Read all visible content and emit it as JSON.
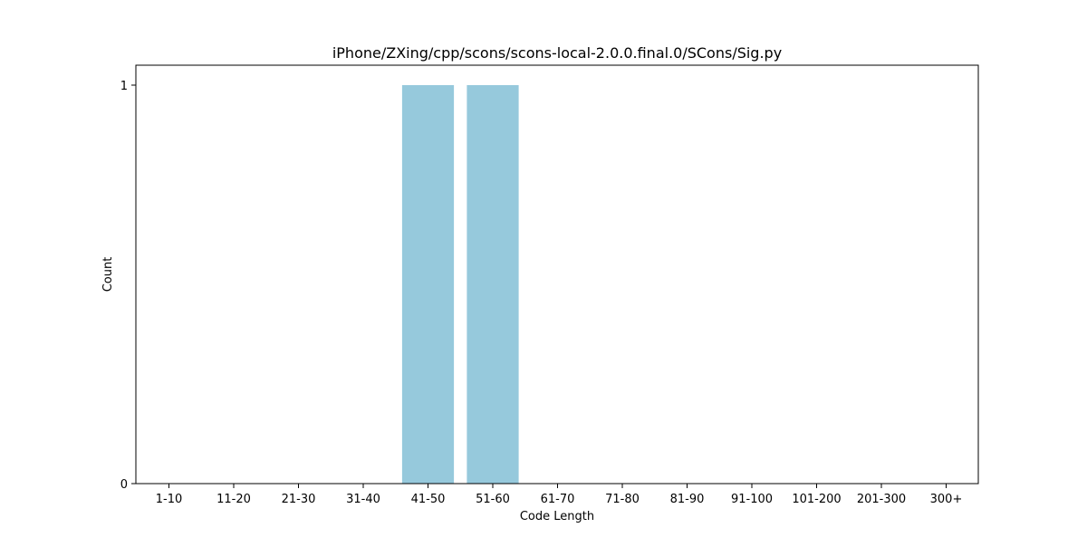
{
  "chart_data": {
    "type": "bar",
    "title": "iPhone/ZXing/cpp/scons/scons-local-2.0.0.final.0/SCons/Sig.py",
    "xlabel": "Code Length",
    "ylabel": "Count",
    "categories": [
      "1-10",
      "11-20",
      "21-30",
      "31-40",
      "41-50",
      "51-60",
      "61-70",
      "71-80",
      "81-90",
      "91-100",
      "101-200",
      "201-300",
      "300+"
    ],
    "values": [
      0,
      0,
      0,
      0,
      1,
      1,
      0,
      0,
      0,
      0,
      0,
      0,
      0
    ],
    "ylim": [
      0,
      1.05
    ],
    "yticks": [
      0,
      1
    ],
    "bar_color": "#96c9dc",
    "grid": false,
    "legend": "none"
  }
}
